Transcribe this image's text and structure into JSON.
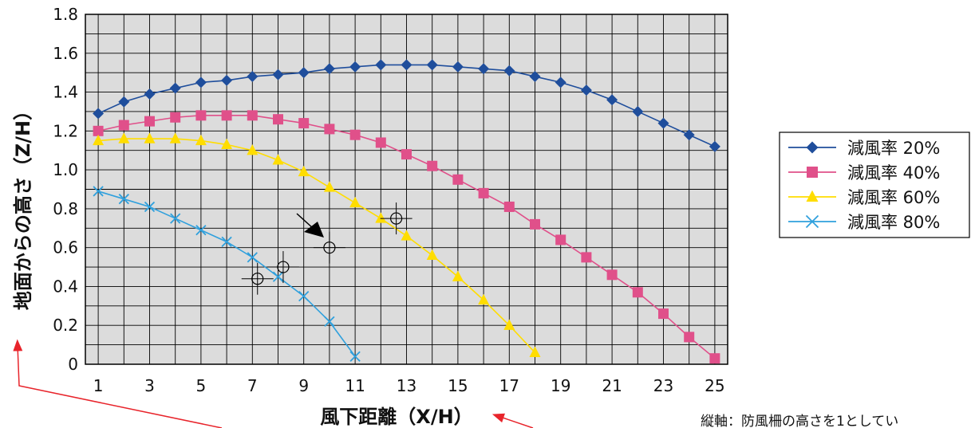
{
  "chart_data": {
    "type": "line",
    "xlabel": "風下距離（X/H）",
    "ylabel": "地面からの高さ（Z/H）",
    "xlim": [
      0.5,
      25.5
    ],
    "ylim": [
      0,
      1.8
    ],
    "x_ticks": [
      1,
      3,
      5,
      7,
      9,
      11,
      13,
      15,
      17,
      19,
      21,
      23,
      25
    ],
    "x_tick_labels": [
      "1",
      "3",
      "5",
      "7",
      "9",
      "11",
      "13",
      "15",
      "17",
      "19",
      "21",
      "23",
      "25"
    ],
    "y_ticks": [
      0,
      0.2,
      0.4,
      0.6,
      0.8,
      1.0,
      1.2,
      1.4,
      1.6,
      1.8
    ],
    "y_tick_labels": [
      "0",
      "0.2",
      "0.4",
      "0.6",
      "0.8",
      "1.0",
      "1.2",
      "1.4",
      "1.6",
      "1.8"
    ],
    "grid": true,
    "legend_position": "right",
    "series": [
      {
        "name": "減風率 20%",
        "color": "#1f4e9c",
        "marker": "diamond",
        "x": [
          1,
          2,
          3,
          4,
          5,
          6,
          7,
          8,
          9,
          10,
          11,
          12,
          13,
          14,
          15,
          16,
          17,
          18,
          19,
          20,
          21,
          22,
          23,
          24,
          25
        ],
        "y": [
          1.29,
          1.35,
          1.39,
          1.42,
          1.45,
          1.46,
          1.48,
          1.49,
          1.5,
          1.52,
          1.53,
          1.54,
          1.54,
          1.54,
          1.53,
          1.52,
          1.51,
          1.48,
          1.45,
          1.41,
          1.36,
          1.3,
          1.24,
          1.18,
          1.12
        ]
      },
      {
        "name": "減風率 40%",
        "color": "#e0508a",
        "marker": "square",
        "x": [
          1,
          2,
          3,
          4,
          5,
          6,
          7,
          8,
          9,
          10,
          11,
          12,
          13,
          14,
          15,
          16,
          17,
          18,
          19,
          20,
          21,
          22,
          23,
          24,
          25
        ],
        "y": [
          1.2,
          1.23,
          1.25,
          1.27,
          1.28,
          1.28,
          1.28,
          1.26,
          1.24,
          1.21,
          1.18,
          1.14,
          1.08,
          1.02,
          0.95,
          0.88,
          0.81,
          0.72,
          0.64,
          0.55,
          0.46,
          0.37,
          0.26,
          0.14,
          0.03
        ]
      },
      {
        "name": "減風率 60%",
        "color": "#ffdd00",
        "marker": "triangle",
        "x": [
          1,
          2,
          3,
          4,
          5,
          6,
          7,
          8,
          9,
          10,
          11,
          12,
          13,
          14,
          15,
          16,
          17,
          18
        ],
        "y": [
          1.15,
          1.16,
          1.16,
          1.16,
          1.15,
          1.13,
          1.1,
          1.05,
          0.99,
          0.91,
          0.83,
          0.75,
          0.66,
          0.56,
          0.45,
          0.33,
          0.2,
          0.06
        ]
      },
      {
        "name": "減風率 80%",
        "color": "#2fa0dd",
        "marker": "x",
        "x": [
          1,
          2,
          3,
          4,
          5,
          6,
          7,
          8,
          9,
          10,
          11
        ],
        "y": [
          0.89,
          0.85,
          0.81,
          0.75,
          0.69,
          0.63,
          0.55,
          0.45,
          0.35,
          0.22,
          0.04
        ]
      }
    ],
    "observations": [
      {
        "x": 7.2,
        "y": 0.44
      },
      {
        "x": 8.2,
        "y": 0.5
      },
      {
        "x": 10.0,
        "y": 0.6
      },
      {
        "x": 12.6,
        "y": 0.75
      }
    ],
    "annotation_note": "縦軸：防風柵の高さを1としてい"
  }
}
